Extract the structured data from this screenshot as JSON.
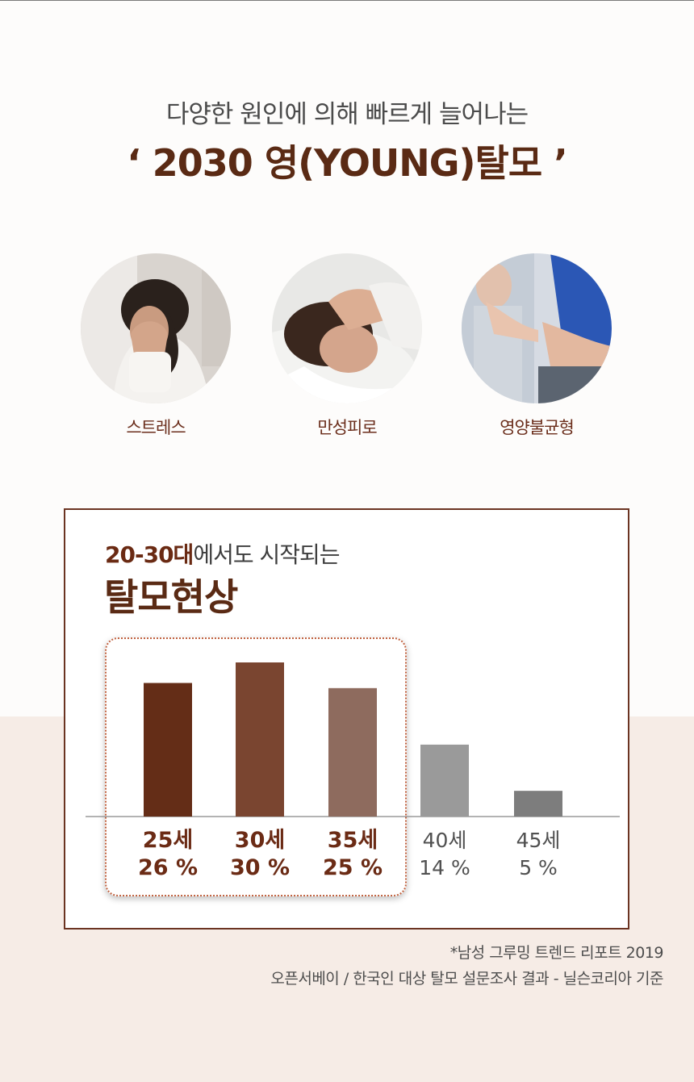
{
  "header": {
    "subtitle": "다양한 원인에 의해 빠르게 늘어나는",
    "headline": "‘ 2030 영(YOUNG)탈모 ’"
  },
  "causes": [
    {
      "label": "스트레스"
    },
    {
      "label": "만성피로"
    },
    {
      "label": "영양불균형"
    }
  ],
  "chart_card": {
    "subtitle_highlight": "20-30대",
    "subtitle_rest": "에서도 시작되는",
    "title": "탈모현상"
  },
  "chart_data": {
    "type": "bar",
    "categories": [
      "25세",
      "30세",
      "35세",
      "40세",
      "45세"
    ],
    "values": [
      26,
      30,
      25,
      14,
      5
    ],
    "value_labels": [
      "26 %",
      "30 %",
      "25 %",
      "14 %",
      "5 %"
    ],
    "colors": [
      "#642d17",
      "#7a4530",
      "#8e6b5e",
      "#9a9a9a",
      "#7d7d7d"
    ],
    "highlighted": [
      true,
      true,
      true,
      false,
      false
    ],
    "highlight_text_color": "#6b2b15",
    "normal_text_color": "#505050",
    "ylim": [
      0,
      30
    ]
  },
  "source": {
    "line1": "*남성 그루밍 트렌드 리포트 2019",
    "line2": "오픈서베이 / 한국인 대상 탈모 설문조사 결과 - 닐슨코리아 기준"
  }
}
